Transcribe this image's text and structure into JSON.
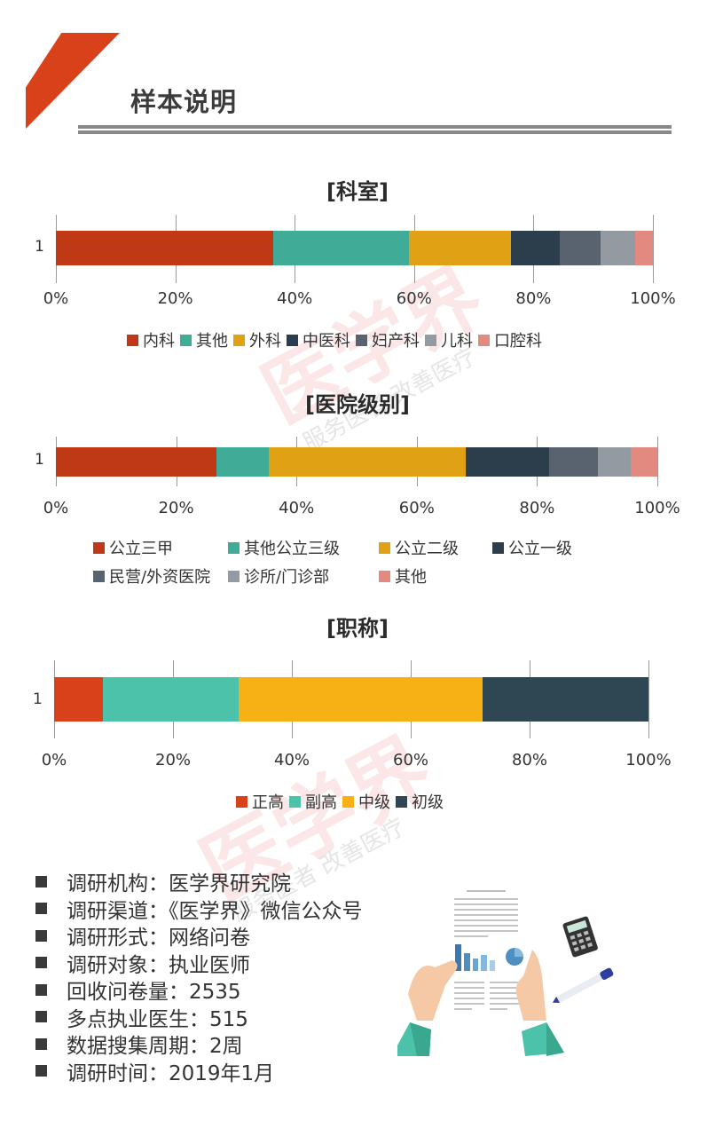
{
  "header": {
    "title": "样本说明",
    "accent_color": "#d9411a",
    "rule_color": "#888888"
  },
  "watermark": {
    "main": "医学界",
    "sub": "服务医者 改善医疗"
  },
  "chart_data": [
    {
      "type": "bar",
      "orientation": "horizontal",
      "stacked": "percent",
      "title": "[科室]",
      "categories": [
        "1"
      ],
      "series": [
        {
          "name": "内科",
          "values": [
            36.4
          ],
          "color": "#c03915"
        },
        {
          "name": "其他",
          "values": [
            22.7
          ],
          "color": "#40ac97"
        },
        {
          "name": "外科",
          "values": [
            17.1
          ],
          "color": "#e0a115"
        },
        {
          "name": "中医科",
          "values": [
            8.2
          ],
          "color": "#2c3e4b"
        },
        {
          "name": "妇产科",
          "values": [
            6.8
          ],
          "color": "#59636f"
        },
        {
          "name": "儿科",
          "values": [
            5.8
          ],
          "color": "#939aa2"
        },
        {
          "name": "口腔科",
          "values": [
            3.0
          ],
          "color": "#e38a80"
        }
      ],
      "xticks": [
        "0%",
        "20%",
        "40%",
        "60%",
        "80%",
        "100%"
      ],
      "xlim": [
        0,
        100
      ],
      "xlabel": "",
      "ylabel": "",
      "grid": true,
      "legend_position": "bottom"
    },
    {
      "type": "bar",
      "orientation": "horizontal",
      "stacked": "percent",
      "title": "[医院级别]",
      "categories": [
        "1"
      ],
      "series": [
        {
          "name": "公立三甲",
          "values": [
            26.7
          ],
          "color": "#c03915"
        },
        {
          "name": "其他公立三级",
          "values": [
            8.7
          ],
          "color": "#40ac97"
        },
        {
          "name": "公立二级",
          "values": [
            32.7
          ],
          "color": "#e0a115"
        },
        {
          "name": "公立一级",
          "values": [
            13.9
          ],
          "color": "#2c3e4b"
        },
        {
          "name": "民营/外资医院",
          "values": [
            8.1
          ],
          "color": "#59636f"
        },
        {
          "name": "诊所/门诊部",
          "values": [
            5.5
          ],
          "color": "#939aa2"
        },
        {
          "name": "其他",
          "values": [
            4.4
          ],
          "color": "#e38a80"
        }
      ],
      "xticks": [
        "0%",
        "20%",
        "40%",
        "60%",
        "80%",
        "100%"
      ],
      "xlim": [
        0,
        100
      ],
      "xlabel": "",
      "ylabel": "",
      "grid": true,
      "legend_position": "bottom"
    },
    {
      "type": "bar",
      "orientation": "horizontal",
      "stacked": "percent",
      "title": "[职称]",
      "categories": [
        "1"
      ],
      "series": [
        {
          "name": "正高",
          "values": [
            8.2
          ],
          "color": "#d9411a"
        },
        {
          "name": "副高",
          "values": [
            22.8
          ],
          "color": "#4dc2aa"
        },
        {
          "name": "中级",
          "values": [
            41.1
          ],
          "color": "#f8b114"
        },
        {
          "name": "初级",
          "values": [
            27.9
          ],
          "color": "#2f4753"
        }
      ],
      "xticks": [
        "0%",
        "20%",
        "40%",
        "60%",
        "80%",
        "100%"
      ],
      "xlim": [
        0,
        100
      ],
      "xlabel": "",
      "ylabel": "",
      "grid": true,
      "legend_position": "bottom"
    }
  ],
  "info": {
    "items": [
      "调研机构：医学界研究院",
      "调研渠道：《医学界》微信公众号",
      "调研形式：网络问卷",
      "调研对象：执业医师",
      "回收问卷量：2535",
      "多点执业医生：515",
      "数据搜集周期：2周",
      "调研时间：2019年1月"
    ]
  },
  "illustration": {
    "icons": [
      "document-icon",
      "bar-chart-icon",
      "pie-chart-icon",
      "hands-icon",
      "calculator-icon",
      "pen-icon"
    ]
  }
}
